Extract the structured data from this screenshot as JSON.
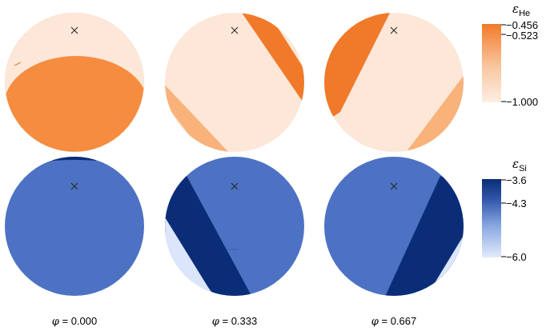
{
  "phase_symbol": "φ",
  "phases": [
    "0.000",
    "0.333",
    "0.667"
  ],
  "panels_he": [
    {
      "phase": "0.000",
      "bands": [
        {
          "color": "#f58c3f"
        }
      ]
    },
    {
      "phase": "0.333",
      "bands": [
        {
          "color": "#f07a2a"
        },
        {
          "color": "#f8b27a"
        }
      ]
    },
    {
      "phase": "0.667",
      "bands": [
        {
          "color": "#f07a2a"
        },
        {
          "color": "#f8b27a"
        }
      ]
    }
  ],
  "panels_si": [
    {
      "phase": "0.000",
      "bands": [
        {
          "color": "#0b2d78"
        }
      ]
    },
    {
      "phase": "0.333",
      "bands": [
        {
          "color": "#0b2d78"
        },
        {
          "color": "#dbe6fb"
        }
      ]
    },
    {
      "phase": "0.667",
      "bands": [
        {
          "color": "#0b2d78"
        },
        {
          "color": "#dbe6fb"
        }
      ]
    }
  ],
  "colors": {
    "he_base": "#fce7d8",
    "he_strong": "#f07a2a",
    "he_mid": "#f8b27a",
    "si_base": "#4d72c4",
    "si_dark": "#0b2d78",
    "si_light": "#dbe6fb"
  },
  "colorbar_he": {
    "symbol": "ε",
    "subscript": "He",
    "ticks": [
      "−0.456",
      "−0.523",
      "−1.000"
    ],
    "tick_values": [
      -0.456,
      -0.523,
      -1.0
    ]
  },
  "colorbar_si": {
    "symbol": "ε",
    "subscript": "Si",
    "ticks": [
      "−3.6",
      "−4.3",
      "−6.0"
    ],
    "tick_values": [
      -3.6,
      -4.3,
      -6.0
    ]
  },
  "marker_icon": "cross-marker-icon"
}
